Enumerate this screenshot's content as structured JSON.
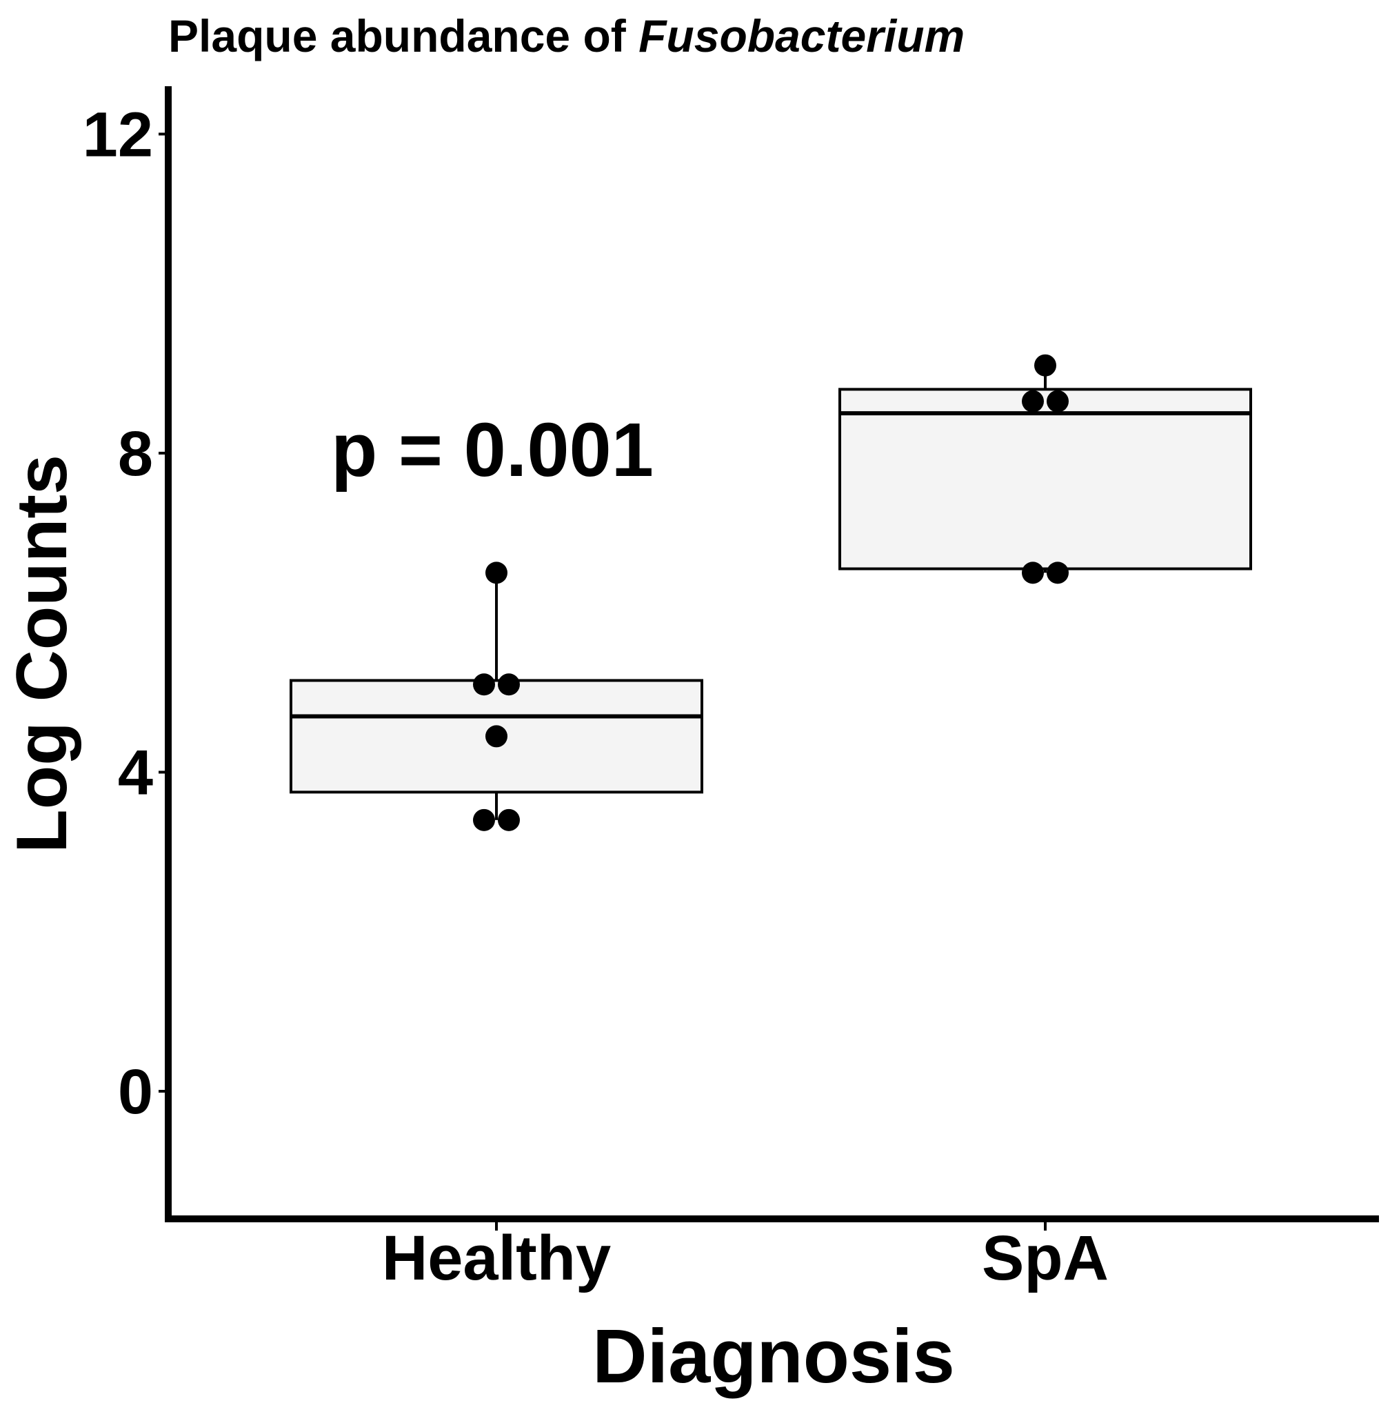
{
  "chart_data": {
    "type": "box",
    "title": "Plaque abundance of Fusobacterium",
    "title_plain": "Plaque abundance of ",
    "title_italic": "Fusobacterium",
    "xlabel": "Diagnosis",
    "ylabel": "Log Counts",
    "ylim": [
      -1.6,
      12.6
    ],
    "yticks": [
      "0",
      "4",
      "8",
      "12"
    ],
    "categories": [
      "Healthy",
      "SpA"
    ],
    "boxes": [
      {
        "name": "Healthy",
        "q1": 3.75,
        "median": 4.7,
        "q3": 5.15,
        "whisker_low": 3.4,
        "whisker_high": 6.5,
        "points": [
          6.5,
          5.1,
          5.1,
          4.45,
          3.4,
          3.4
        ]
      },
      {
        "name": "SpA",
        "q1": 6.55,
        "median": 8.5,
        "q3": 8.8,
        "whisker_low": 6.5,
        "whisker_high": 9.1,
        "points": [
          9.1,
          8.65,
          8.65,
          6.5,
          6.5
        ]
      }
    ],
    "annotation": "p = 0.001",
    "box_fill": "#f4f4f4",
    "grid": false,
    "legend": "none"
  }
}
